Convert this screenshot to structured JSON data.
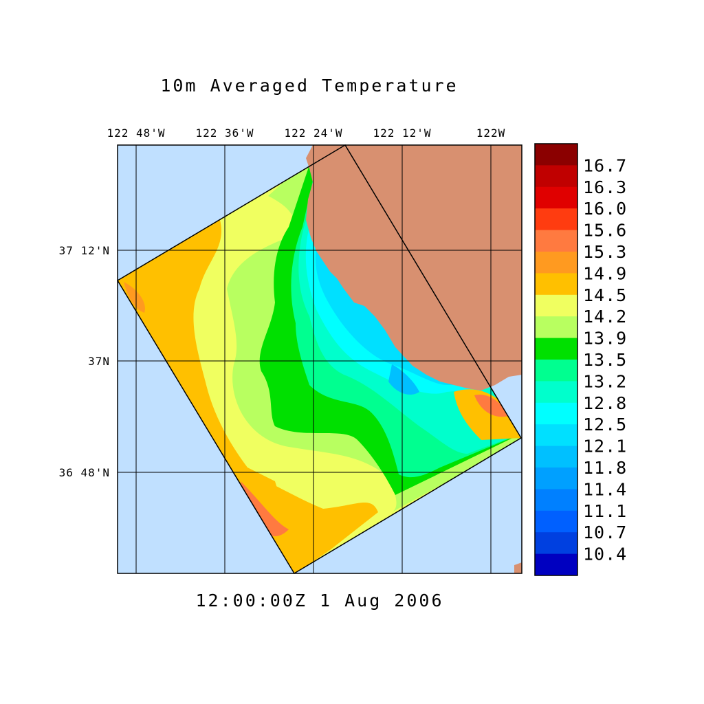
{
  "title": "10m Averaged Temperature",
  "timestamp": "12:00:00Z   1 Aug 2006",
  "axes": {
    "lon_ticks": [
      "122 48'W",
      "122 36'W",
      "122 24'W",
      "122 12'W",
      "122W"
    ],
    "lat_ticks": [
      "37 12'N",
      "37N",
      "36 48'N"
    ]
  },
  "colorbar": {
    "labels": [
      "16.7",
      "16.3",
      "16.0",
      "15.6",
      "15.3",
      "14.9",
      "14.5",
      "14.2",
      "13.9",
      "13.5",
      "13.2",
      "12.8",
      "12.5",
      "12.1",
      "11.8",
      "11.4",
      "11.1",
      "10.7",
      "10.4"
    ],
    "colors": [
      "#8b0000",
      "#c00000",
      "#e00000",
      "#ff3c10",
      "#ff7a40",
      "#ff9a20",
      "#ffc000",
      "#f0ff60",
      "#b8ff60",
      "#00e000",
      "#00ff90",
      "#00ffcc",
      "#00ffff",
      "#00e0ff",
      "#00c0ff",
      "#00a0ff",
      "#0080ff",
      "#0060ff",
      "#0040e0",
      "#0000c0"
    ]
  },
  "colors": {
    "ocean": "#c0e0ff",
    "land": "#d89070",
    "grid": "#000000"
  }
}
